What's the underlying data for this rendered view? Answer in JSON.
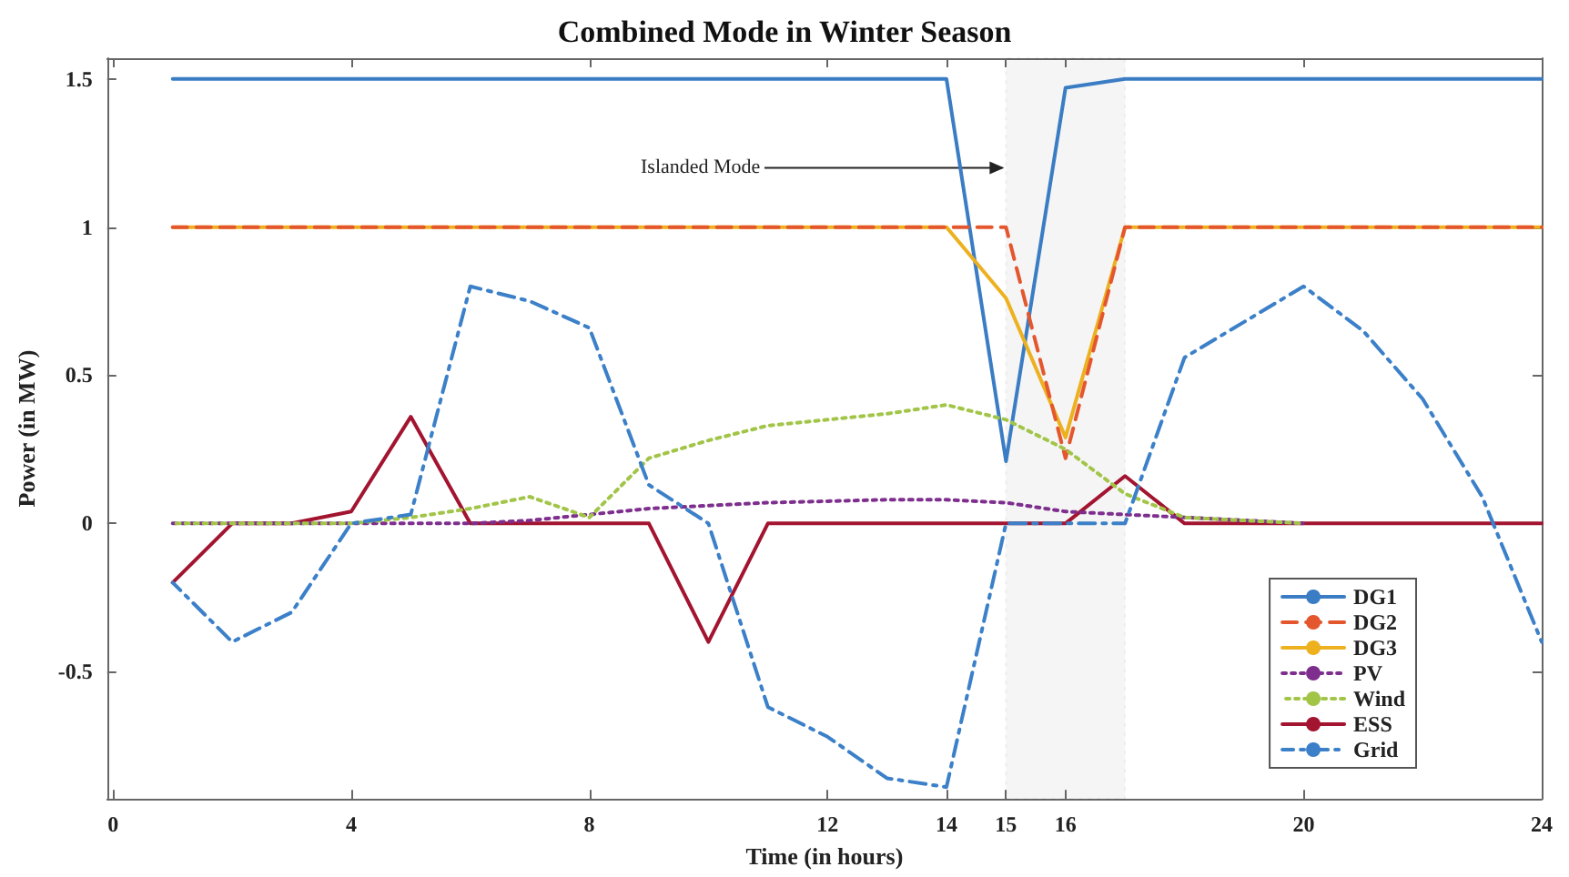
{
  "chart_data": {
    "type": "line",
    "title": "Combined Mode in Winter Season",
    "xlabel": "Time (in hours)",
    "ylabel": "Power (in MW)",
    "x": [
      1,
      2,
      3,
      4,
      5,
      6,
      7,
      8,
      9,
      10,
      11,
      12,
      13,
      14,
      15,
      16,
      17,
      18,
      19,
      20,
      21,
      22,
      23,
      24
    ],
    "xlim": [
      -0.1,
      24
    ],
    "xticks": [
      0,
      4,
      8,
      12,
      14,
      15,
      16,
      20,
      24
    ],
    "ylim": [
      -0.93,
      1.57
    ],
    "yticks": [
      -0.5,
      0,
      0.5,
      1,
      1.5
    ],
    "grid": false,
    "legend": "bottom right",
    "marker": "none",
    "series": [
      {
        "name": "DG1",
        "color": "#3b7dc4",
        "line_style": "solid",
        "values": [
          1.5,
          1.5,
          1.5,
          1.5,
          1.5,
          1.5,
          1.5,
          1.5,
          1.5,
          1.5,
          1.5,
          1.5,
          1.5,
          1.5,
          0.21,
          1.47,
          1.5,
          1.5,
          1.5,
          1.5,
          1.5,
          1.5,
          1.5,
          1.5
        ]
      },
      {
        "name": "DG2",
        "color": "#e4572e",
        "line_style": "dashed",
        "values": [
          1,
          1,
          1,
          1,
          1,
          1,
          1,
          1,
          1,
          1,
          1,
          1,
          1,
          1,
          1,
          0.22,
          1,
          1,
          1,
          1,
          1,
          1,
          1,
          1
        ]
      },
      {
        "name": "DG3",
        "color": "#edb120",
        "line_style": "solid",
        "values": [
          1,
          1,
          1,
          1,
          1,
          1,
          1,
          1,
          1,
          1,
          1,
          1,
          1,
          1,
          0.76,
          0.29,
          1,
          1,
          1,
          1,
          1,
          1,
          1,
          1
        ]
      },
      {
        "name": "PV",
        "color": "#7e2f8e",
        "line_style": "dotted",
        "values": [
          0,
          0,
          0,
          0,
          0,
          0,
          0.01,
          0.03,
          0.05,
          0.06,
          0.07,
          0.075,
          0.08,
          0.08,
          0.07,
          0.04,
          0.03,
          0.02,
          0.01,
          0,
          null,
          null,
          null,
          null
        ]
      },
      {
        "name": "Wind",
        "color": "#a2c548",
        "line_style": "dotted",
        "values": [
          0,
          0,
          0,
          0,
          0.02,
          0.05,
          0.09,
          0.02,
          0.22,
          0.28,
          0.33,
          0.35,
          0.37,
          0.4,
          0.35,
          0.25,
          0.1,
          0.02,
          0.01,
          0,
          null,
          null,
          null,
          null
        ]
      },
      {
        "name": "ESS",
        "color": "#a2142f",
        "line_style": "solid",
        "values": [
          -0.2,
          0,
          0,
          0.04,
          0.36,
          0,
          0,
          0,
          0,
          -0.4,
          0,
          0,
          0,
          0,
          0,
          0,
          0.16,
          0,
          0,
          0,
          0,
          0,
          0,
          0
        ]
      },
      {
        "name": "Grid",
        "color": "#3b80c8",
        "line_style": "dashdot",
        "values": [
          -0.2,
          -0.4,
          -0.3,
          0,
          0.03,
          0.8,
          0.75,
          0.66,
          0.13,
          0,
          -0.62,
          -0.72,
          -0.86,
          -0.89,
          0,
          0,
          0,
          0.56,
          0.68,
          0.8,
          0.65,
          0.42,
          0.09,
          -0.4
        ]
      }
    ],
    "bands": [
      {
        "axis": "x",
        "from": 15,
        "to": 17,
        "color": "#333333"
      }
    ],
    "annotations": [
      {
        "text": "Islanded Mode",
        "x": 15,
        "y": 1.2
      }
    ]
  }
}
